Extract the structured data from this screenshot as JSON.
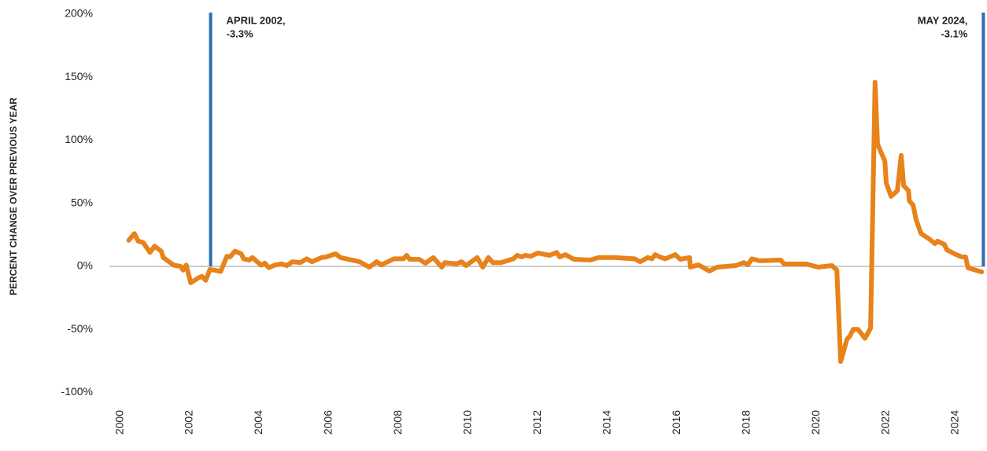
{
  "chart_data": {
    "type": "line",
    "y_axis_label": "PERCENT CHANGE OVER PREVIOUS YEAR",
    "color": "#e8821a",
    "annotation_color": "#2e6db4",
    "annotations": [
      {
        "x": 2002.6,
        "label": [
          "APRIL 2002,",
          "-3.3%"
        ]
      },
      {
        "x": 2024.8,
        "label": [
          "MAY 2024,",
          "-3.1%"
        ]
      }
    ],
    "xlim": [
      1999.7,
      2024.85
    ],
    "xticks": [
      2000,
      2002,
      2004,
      2006,
      2008,
      2010,
      2012,
      2014,
      2016,
      2018,
      2020,
      2022,
      2024
    ],
    "ylim": [
      -100,
      200
    ],
    "yticks": [
      {
        "value": -100,
        "label": "-100%"
      },
      {
        "value": -50,
        "label": "-50%"
      },
      {
        "value": 0,
        "label": "0%"
      },
      {
        "value": 50,
        "label": "50%"
      },
      {
        "value": 100,
        "label": "100%"
      },
      {
        "value": 150,
        "label": "150%"
      },
      {
        "value": 200,
        "label": "200%"
      }
    ],
    "grid": false,
    "x": [
      2000.25,
      2000.41,
      2000.52,
      2000.66,
      2000.86,
      2000.99,
      2001.18,
      2001.24,
      2001.54,
      2001.74,
      2001.81,
      2001.9,
      2002.03,
      2002.26,
      2002.35,
      2002.46,
      2002.58,
      2002.71,
      2002.89,
      2003.07,
      2003.16,
      2003.3,
      2003.48,
      2003.55,
      2003.71,
      2003.8,
      2004.05,
      2004.16,
      2004.27,
      2004.45,
      2004.63,
      2004.79,
      2004.95,
      2005.18,
      2005.36,
      2005.51,
      2005.79,
      2005.92,
      2006.19,
      2006.33,
      2006.88,
      2007.16,
      2007.37,
      2007.5,
      2007.64,
      2007.86,
      2008.14,
      2008.23,
      2008.32,
      2008.59,
      2008.77,
      2009.0,
      2009.24,
      2009.33,
      2009.67,
      2009.81,
      2009.94,
      2010.26,
      2010.42,
      2010.58,
      2010.71,
      2010.94,
      2011.3,
      2011.41,
      2011.53,
      2011.64,
      2011.8,
      2012.0,
      2012.34,
      2012.54,
      2012.63,
      2012.79,
      2013.04,
      2013.51,
      2013.74,
      2014.19,
      2014.78,
      2014.94,
      2015.16,
      2015.28,
      2015.37,
      2015.5,
      2015.66,
      2015.95,
      2016.09,
      2016.36,
      2016.38,
      2016.61,
      2016.93,
      2017.15,
      2017.69,
      2017.92,
      2018.03,
      2018.15,
      2018.37,
      2018.98,
      2019.07,
      2019.71,
      2020.05,
      2020.25,
      2020.45,
      2020.59,
      2020.7,
      2020.88,
      2020.97,
      2021.06,
      2021.2,
      2021.4,
      2021.56,
      2021.69,
      2021.76,
      2021.97,
      2022.01,
      2022.15,
      2022.33,
      2022.44,
      2022.51,
      2022.65,
      2022.67,
      2022.78,
      2022.87,
      2023.01,
      2023.23,
      2023.41,
      2023.48,
      2023.68,
      2023.75,
      2024.02,
      2024.18,
      2024.29,
      2024.36,
      2024.75
    ],
    "values": [
      20.6,
      26,
      20,
      19,
      11,
      16,
      12,
      7,
      1,
      0,
      -3,
      1,
      -13,
      -9,
      -8,
      -11,
      -2.5,
      -3,
      -4,
      8,
      7.5,
      12,
      10,
      6,
      5,
      7,
      1,
      2.5,
      -1,
      1,
      2,
      0.6,
      3.7,
      3,
      6,
      3.7,
      7,
      7.5,
      10,
      7,
      3.7,
      -0.6,
      3.7,
      1.2,
      3,
      6,
      6,
      8.7,
      5.6,
      5.6,
      2.5,
      7,
      -0.6,
      3,
      2,
      3.7,
      0.6,
      7,
      -0.6,
      7,
      3,
      3,
      6,
      8.7,
      7.5,
      8.7,
      8,
      10.6,
      8.7,
      11,
      7.5,
      9.3,
      5.6,
      5,
      7,
      7,
      6,
      3.7,
      7,
      6,
      9.3,
      7.5,
      6,
      9.3,
      5.6,
      7,
      -0.6,
      1.2,
      -3.7,
      -0.6,
      0.6,
      3,
      1.2,
      6,
      4.4,
      5,
      1.9,
      1.9,
      -0.6,
      0,
      0.6,
      -3,
      -75.4,
      -58,
      -55,
      -50,
      -50,
      -57,
      -49,
      146,
      97,
      83.5,
      66,
      55.5,
      60,
      88,
      64,
      60,
      52,
      48.6,
      36.8,
      26,
      22,
      18,
      20,
      17.4,
      13,
      9.3,
      7.5,
      7.5,
      -1.2,
      -4.4
    ]
  }
}
